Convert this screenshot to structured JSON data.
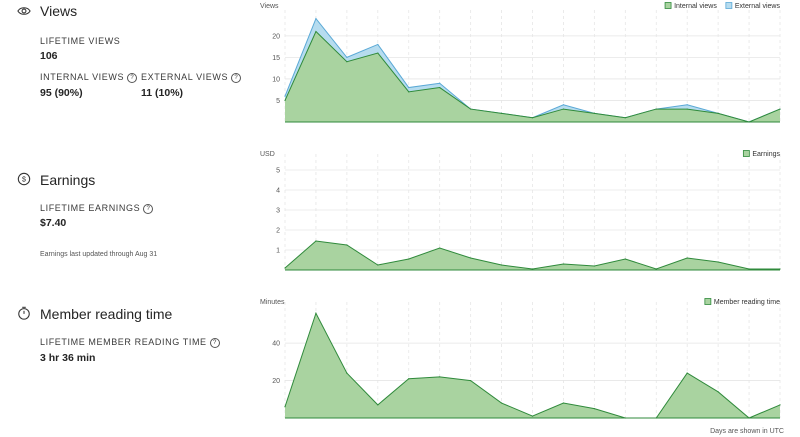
{
  "views": {
    "title": "Views",
    "lifetime_label": "LIFETIME VIEWS",
    "lifetime_value": "106",
    "internal_label": "INTERNAL VIEWS",
    "internal_value": "95 (90%)",
    "external_label": "EXTERNAL VIEWS",
    "external_value": "11 (10%)"
  },
  "earnings": {
    "title": "Earnings",
    "lifetime_label": "LIFETIME EARNINGS",
    "lifetime_value": "$7.40",
    "note": "Earnings last updated through Aug 31"
  },
  "reading": {
    "title": "Member reading time",
    "lifetime_label": "LIFETIME MEMBER READING TIME",
    "lifetime_value": "3 hr 36 min"
  },
  "footer": "Days are shown in UTC",
  "colors": {
    "internal": "#a9d3a0",
    "internal_line": "#2f8a3b",
    "external": "#b6dcef",
    "external_line": "#5aa9d6",
    "grid": "#e6e6e6"
  },
  "chart_data": [
    {
      "type": "area",
      "ylabel": "Views",
      "yticks": [
        5,
        10,
        15,
        20
      ],
      "ylim": [
        0,
        26
      ],
      "legend": [
        "Internal views",
        "External views"
      ],
      "series": [
        {
          "name": "Internal views",
          "values": [
            5,
            21,
            14,
            16,
            7,
            8,
            3,
            2,
            1,
            3,
            2,
            1,
            3,
            3,
            2,
            0,
            3
          ]
        },
        {
          "name": "External views",
          "values": [
            6,
            24,
            15,
            18,
            8,
            9,
            3,
            2,
            1,
            4,
            2,
            1,
            3,
            4,
            2,
            0,
            3
          ]
        }
      ]
    },
    {
      "type": "area",
      "ylabel": "USD",
      "yticks": [
        1,
        2,
        3,
        4,
        5
      ],
      "ylim": [
        0,
        5.8
      ],
      "legend": [
        "Earnings"
      ],
      "series": [
        {
          "name": "Earnings",
          "values": [
            0.1,
            1.45,
            1.25,
            0.25,
            0.55,
            1.1,
            0.6,
            0.25,
            0.05,
            0.3,
            0.2,
            0.55,
            0.05,
            0.6,
            0.4,
            0.05,
            0.05
          ]
        }
      ]
    },
    {
      "type": "area",
      "ylabel": "Minutes",
      "yticks": [
        20,
        40
      ],
      "ylim": [
        0,
        62
      ],
      "legend": [
        "Member reading time"
      ],
      "series": [
        {
          "name": "Member reading time",
          "values": [
            6,
            56,
            24,
            7,
            21,
            22,
            20,
            8,
            1,
            8,
            5,
            0,
            0,
            24,
            14,
            0,
            7
          ]
        }
      ]
    }
  ]
}
